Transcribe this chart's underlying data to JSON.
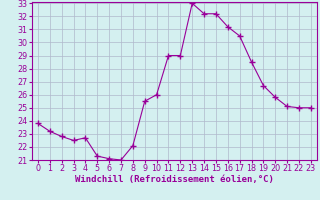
{
  "x": [
    0,
    1,
    2,
    3,
    4,
    5,
    6,
    7,
    8,
    9,
    10,
    11,
    12,
    13,
    14,
    15,
    16,
    17,
    18,
    19,
    20,
    21,
    22,
    23
  ],
  "y": [
    23.8,
    23.2,
    22.8,
    22.5,
    22.7,
    21.3,
    21.1,
    21.0,
    22.1,
    25.5,
    26.0,
    29.0,
    29.0,
    33.0,
    32.2,
    32.2,
    31.2,
    30.5,
    28.5,
    26.7,
    25.8,
    25.1,
    25.0,
    25.0
  ],
  "xlabel": "Windchill (Refroidissement éolien,°C)",
  "ylabel": "",
  "ylim": [
    21,
    33
  ],
  "xlim": [
    -0.5,
    23.5
  ],
  "yticks": [
    21,
    22,
    23,
    24,
    25,
    26,
    27,
    28,
    29,
    30,
    31,
    32,
    33
  ],
  "xticks": [
    0,
    1,
    2,
    3,
    4,
    5,
    6,
    7,
    8,
    9,
    10,
    11,
    12,
    13,
    14,
    15,
    16,
    17,
    18,
    19,
    20,
    21,
    22,
    23
  ],
  "line_color": "#990099",
  "marker": "+",
  "marker_size": 4.0,
  "marker_lw": 1.0,
  "bg_color": "#d4f0f0",
  "grid_color": "#b0b8cc",
  "xlabel_fontsize": 6.5,
  "tick_fontsize": 5.8
}
